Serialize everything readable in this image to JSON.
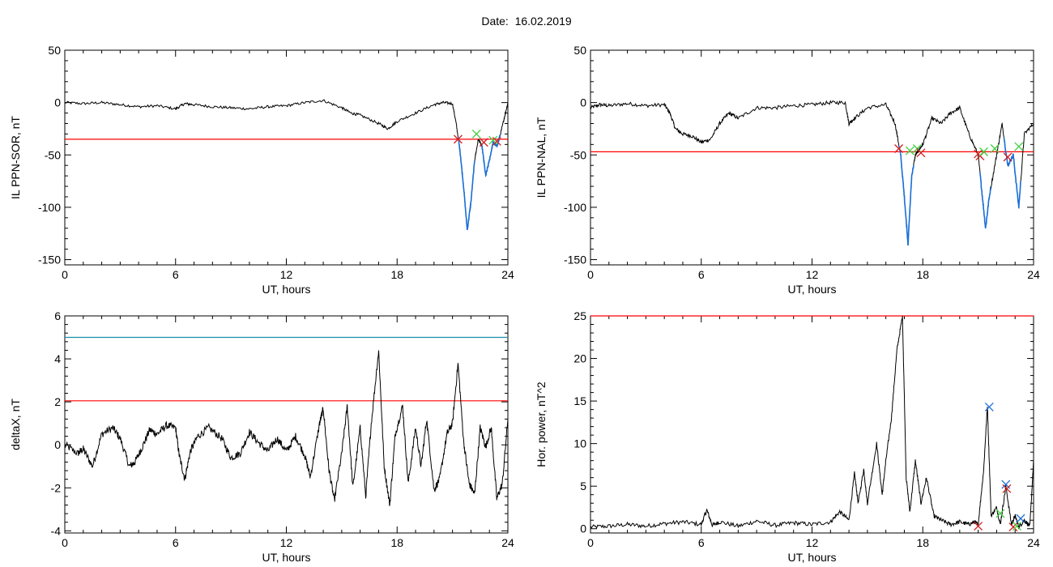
{
  "title": "Date:  16.02.2019",
  "colors": {
    "threshold_red": "#ff0000",
    "threshold_teal": "#1a8fa8",
    "highlight_blue": "#1a6fd6",
    "marker_red": "#d42020",
    "marker_green": "#3fcf3f",
    "marker_blue": "#1a6fd6",
    "trace": "#000000"
  },
  "chart_data": [
    {
      "type": "line",
      "id": "sor",
      "ylabel": "IL PPN-SOR, nT",
      "xlabel": "UT, hours",
      "xlim": [
        0,
        24
      ],
      "ylim": [
        -155,
        50
      ],
      "xticks": [
        0,
        6,
        12,
        18,
        24
      ],
      "yticks": [
        -150,
        -100,
        -50,
        0,
        50
      ],
      "hlines": [
        {
          "y": -35,
          "color": "#ff0000"
        }
      ],
      "series": [
        {
          "x": [
            0,
            1,
            2,
            3,
            4,
            5,
            6,
            6.5,
            7,
            8,
            9,
            10,
            11,
            12,
            13,
            14,
            15,
            15.5,
            16,
            17,
            17.5,
            18,
            19,
            20,
            20.5,
            21,
            21.2,
            21.4,
            21.6,
            21.8,
            22,
            22.2,
            22.4,
            22.6,
            22.8,
            23,
            23.2,
            23.4,
            23.6,
            23.8,
            24
          ],
          "y": [
            0,
            -1,
            0,
            -2,
            -4,
            -3,
            -6,
            -1,
            -2,
            -4,
            -5,
            -6,
            -4,
            -3,
            0,
            2,
            -5,
            -10,
            -12,
            -20,
            -25,
            -18,
            -10,
            -2,
            0,
            -1,
            -20,
            -45,
            -80,
            -122,
            -95,
            -55,
            -35,
            -42,
            -70,
            -55,
            -38,
            -42,
            -30,
            -15,
            0
          ]
        }
      ],
      "highlight": {
        "x_ranges": [
          [
            21.3,
            22.2
          ],
          [
            22.6,
            23.6
          ]
        ],
        "color": "#1a6fd6"
      },
      "markers": [
        {
          "x": 21.3,
          "y": -35,
          "color": "#d42020"
        },
        {
          "x": 22.3,
          "y": -30,
          "color": "#3fcf3f"
        },
        {
          "x": 22.7,
          "y": -38,
          "color": "#d42020"
        },
        {
          "x": 23.2,
          "y": -36,
          "color": "#3fcf3f"
        },
        {
          "x": 23.4,
          "y": -37,
          "color": "#d42020"
        }
      ]
    },
    {
      "type": "line",
      "id": "nal",
      "ylabel": "IL PPN-NAL, nT",
      "xlabel": "UT, hours",
      "xlim": [
        0,
        24
      ],
      "ylim": [
        -155,
        50
      ],
      "xticks": [
        0,
        6,
        12,
        18,
        24
      ],
      "yticks": [
        -150,
        -100,
        -50,
        0,
        50
      ],
      "hlines": [
        {
          "y": -47,
          "color": "#ff0000"
        }
      ],
      "series": [
        {
          "x": [
            0,
            0.5,
            1,
            2,
            3,
            4,
            4.3,
            4.6,
            5,
            5.5,
            6,
            6.5,
            7,
            7.5,
            8,
            9,
            10,
            11,
            12,
            13,
            13.8,
            14,
            14.3,
            15,
            16,
            16.5,
            16.8,
            17,
            17.2,
            17.4,
            17.6,
            17.8,
            18,
            18.5,
            19,
            19.5,
            20,
            20.5,
            21,
            21.2,
            21.4,
            21.6,
            22,
            22.3,
            22.6,
            22.9,
            23.2,
            23.5,
            24
          ],
          "y": [
            -5,
            -2,
            -3,
            -1,
            -3,
            -2,
            -10,
            -25,
            -30,
            -32,
            -38,
            -35,
            -20,
            -10,
            -15,
            -5,
            -5,
            -3,
            -2,
            0,
            0,
            -20,
            -15,
            -5,
            -2,
            -20,
            -50,
            -90,
            -135,
            -70,
            -50,
            -45,
            -40,
            -15,
            -20,
            -10,
            -5,
            -30,
            -50,
            -85,
            -120,
            -90,
            -50,
            -20,
            -60,
            -50,
            -100,
            -30,
            -20
          ]
        }
      ],
      "highlight": {
        "x_ranges": [
          [
            16.7,
            17.5
          ],
          [
            21.1,
            21.7
          ],
          [
            22.4,
            23.3
          ]
        ],
        "color": "#1a6fd6"
      },
      "markers": [
        {
          "x": 16.7,
          "y": -44,
          "color": "#d42020"
        },
        {
          "x": 17.3,
          "y": -46,
          "color": "#3fcf3f"
        },
        {
          "x": 17.7,
          "y": -44,
          "color": "#3fcf3f"
        },
        {
          "x": 17.9,
          "y": -48,
          "color": "#d42020"
        },
        {
          "x": 21.0,
          "y": -49,
          "color": "#d42020"
        },
        {
          "x": 21.1,
          "y": -51,
          "color": "#d42020"
        },
        {
          "x": 21.3,
          "y": -47,
          "color": "#3fcf3f"
        },
        {
          "x": 21.9,
          "y": -44,
          "color": "#3fcf3f"
        },
        {
          "x": 22.6,
          "y": -52,
          "color": "#d42020"
        },
        {
          "x": 23.2,
          "y": -42,
          "color": "#3fcf3f"
        }
      ]
    },
    {
      "type": "line",
      "id": "deltax",
      "ylabel": "deltaX, nT",
      "xlabel": "UT, hours",
      "xlim": [
        0,
        24
      ],
      "ylim": [
        -4.1,
        6
      ],
      "xticks": [
        0,
        6,
        12,
        18,
        24
      ],
      "yticks": [
        -4,
        -2,
        0,
        2,
        4,
        6
      ],
      "hlines": [
        {
          "y": 5,
          "color": "#1a8fa8"
        },
        {
          "y": 2.05,
          "color": "#ff0000"
        }
      ],
      "series": [
        {
          "x": [
            0,
            0.7,
            1,
            1.5,
            2,
            2.6,
            3,
            3.5,
            3.8,
            4.2,
            4.6,
            5,
            5.5,
            6,
            6.2,
            6.5,
            6.8,
            7.2,
            7.8,
            8.5,
            9,
            9.5,
            10,
            10.5,
            11,
            11.5,
            12,
            12.5,
            13,
            13.3,
            13.8,
            14,
            14.3,
            14.6,
            15,
            15.3,
            15.6,
            16,
            16.3,
            16.6,
            17,
            17.3,
            17.6,
            17.9,
            18.3,
            18.6,
            19,
            19.3,
            19.6,
            20,
            20.3,
            20.7,
            21,
            21.3,
            21.6,
            21.9,
            22.2,
            22.5,
            22.8,
            23.1,
            23.4,
            23.7,
            24
          ],
          "y": [
            0,
            -0.4,
            -0.2,
            -1,
            0.5,
            0.8,
            0.3,
            -1,
            -0.8,
            -0.1,
            0.7,
            0.5,
            0.9,
            0.8,
            -0.5,
            -1.6,
            -0.3,
            0.4,
            0.8,
            0.3,
            -0.6,
            -0.4,
            0.6,
            0.1,
            -0.3,
            0.3,
            -0.3,
            0.4,
            -0.5,
            -1.5,
            1,
            1.7,
            -1.1,
            -2.6,
            -0.4,
            1.8,
            -2,
            0.8,
            -2.4,
            1,
            4.4,
            -1,
            -2.8,
            0.5,
            1.8,
            -1.8,
            0.8,
            -1,
            1.2,
            -2.1,
            -1.6,
            0.5,
            1,
            3.8,
            0.2,
            -1.8,
            -2.3,
            0.8,
            -0.1,
            0.8,
            -2.5,
            -1.8,
            1.2
          ]
        }
      ]
    },
    {
      "type": "line",
      "id": "power",
      "ylabel": "Hor. power, nT^2",
      "xlabel": "UT, hours",
      "xlim": [
        0,
        24
      ],
      "ylim": [
        -0.5,
        25
      ],
      "xticks": [
        0,
        6,
        12,
        18,
        24
      ],
      "yticks": [
        0,
        5,
        10,
        15,
        20,
        25
      ],
      "hlines": [
        {
          "y": 25,
          "color": "#ff0000"
        }
      ],
      "series": [
        {
          "x": [
            0,
            1,
            2,
            3,
            4,
            5,
            6,
            6.3,
            6.6,
            7,
            8,
            9,
            10,
            11,
            12,
            13,
            13.5,
            14,
            14.3,
            14.5,
            14.8,
            15,
            15.5,
            15.8,
            16,
            16.3,
            16.6,
            16.9,
            17.1,
            17.3,
            17.6,
            17.9,
            18.2,
            18.6,
            19,
            19.5,
            20,
            20.5,
            20.8,
            21,
            21.3,
            21.5,
            21.7,
            22,
            22.2,
            22.5,
            22.8,
            23,
            23.2,
            23.5,
            23.8,
            24
          ],
          "y": [
            0.2,
            0.3,
            0.5,
            0.3,
            0.6,
            0.8,
            0.5,
            2.2,
            0.4,
            0.8,
            0.3,
            0.9,
            0.4,
            0.7,
            0.5,
            0.8,
            2,
            1,
            6.5,
            3,
            7,
            3,
            10,
            4,
            8,
            13,
            21,
            25,
            6,
            2,
            8,
            3,
            6,
            1.5,
            1,
            0.5,
            0.8,
            0.5,
            0.8,
            0.5,
            7,
            14.5,
            1.5,
            2.5,
            0.5,
            5,
            0.5,
            1.5,
            0.2,
            1,
            0.3,
            8
          ]
        }
      ],
      "markers": [
        {
          "x": 21.0,
          "y": 0.3,
          "color": "#d42020"
        },
        {
          "x": 21.6,
          "y": 14.3,
          "color": "#1a6fd6"
        },
        {
          "x": 22.2,
          "y": 1.8,
          "color": "#3fcf3f"
        },
        {
          "x": 22.5,
          "y": 5.2,
          "color": "#1a6fd6"
        },
        {
          "x": 22.55,
          "y": 4.7,
          "color": "#d42020"
        },
        {
          "x": 22.9,
          "y": 0.2,
          "color": "#d42020"
        },
        {
          "x": 23.1,
          "y": 0.3,
          "color": "#3fcf3f"
        },
        {
          "x": 23.3,
          "y": 1.2,
          "color": "#1a6fd6"
        }
      ]
    }
  ]
}
